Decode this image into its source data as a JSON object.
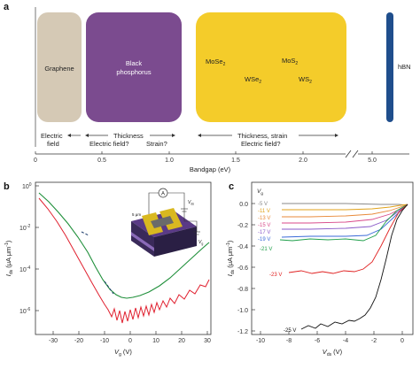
{
  "panel_a": {
    "letter": "a",
    "materials": {
      "graphene": "Graphene",
      "black_phosphorus": [
        "Black",
        "phosphorus"
      ],
      "tmd": {
        "mose2": "MoSe",
        "mos2": "MoS",
        "wse2": "WSe",
        "ws2": "WS",
        "sub": "2"
      },
      "hbn": "hBN"
    },
    "tuning": {
      "electric_field": [
        "Electric",
        "field"
      ],
      "bp": [
        "Thickness",
        "Electric field?",
        "Strain?"
      ],
      "tmd": [
        "Thickness, strain",
        "Electric field?"
      ]
    },
    "axis": {
      "ticks": [
        "0",
        "0.5",
        "1.0",
        "1.5",
        "2.0",
        "5.0"
      ],
      "label": "Bandgap (eV)"
    },
    "colors": {
      "graphene": "#d5c9b5",
      "black_phosphorus": "#7b4b8f",
      "tmd": "#f4cc2a",
      "hbn": "#1f4e8c"
    }
  },
  "panel_b": {
    "letter": "b",
    "y_ticks": [
      "10",
      "10",
      "10",
      "10"
    ],
    "y_exps": [
      "0",
      "-2",
      "-4",
      "-6"
    ],
    "x_ticks": [
      "-30",
      "-20",
      "-10",
      "0",
      "10",
      "20",
      "30"
    ],
    "ylabel": "I",
    "ylabel_sub": "ds",
    "ylabel_unit": " (μA μm",
    "ylabel_unit_exp": "-1",
    "ylabel_close": ")",
    "xlabel": "V",
    "xlabel_sub": "g",
    "xlabel_unit": " (V)",
    "inset_labels": {
      "ammeter": "A",
      "vds": "V",
      "vds_sub": "ds",
      "vg": "V",
      "vg_sub": "g",
      "scale": "5 μm"
    },
    "series_colors": {
      "upper": "#1f8f3a",
      "lower": "#e0202f"
    }
  },
  "panel_c": {
    "letter": "c",
    "vg_header": "V",
    "vg_header_sub": "g",
    "curve_labels": [
      "-5 V",
      "-11 V",
      "-13 V",
      "-15 V",
      "-17 V",
      "-19 V",
      "-21 V",
      "-23 V",
      "-25 V"
    ],
    "curve_colors": [
      "#8a8a8a",
      "#e0a21a",
      "#e88a3a",
      "#d84a8a",
      "#8a5ac8",
      "#3a6ad8",
      "#1f9f4a",
      "#e02020",
      "#111111"
    ],
    "y_ticks": [
      "0.0",
      "-0.2",
      "-0.4",
      "-0.6",
      "-0.8",
      "-1.0",
      "-1.2"
    ],
    "x_ticks": [
      "-10",
      "-8",
      "-6",
      "-4",
      "-2",
      "0"
    ],
    "ylabel": "I",
    "ylabel_sub": "ds",
    "ylabel_unit": " (μA μm",
    "ylabel_unit_exp": "-1",
    "ylabel_close": ")",
    "xlabel": "V",
    "xlabel_sub": "ds",
    "xlabel_unit": " (V)"
  }
}
